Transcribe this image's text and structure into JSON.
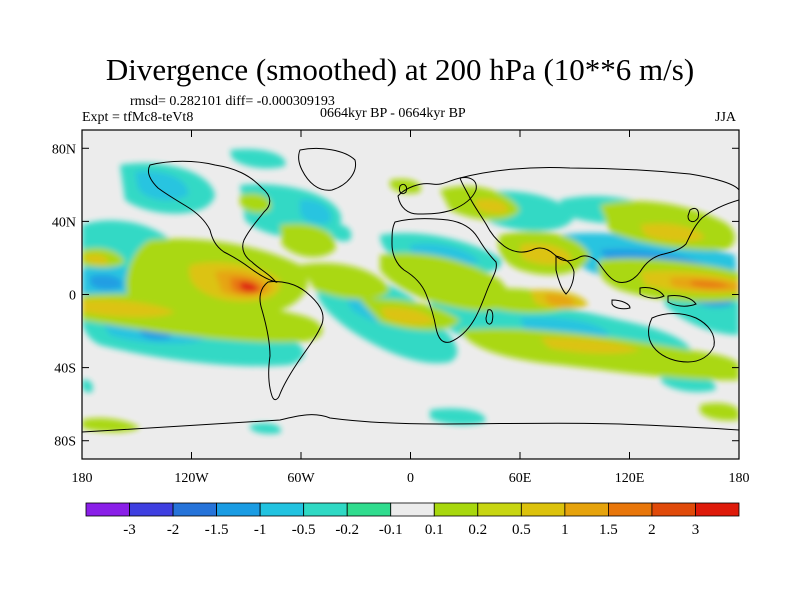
{
  "title": "Divergence (smoothed) at 200 hPa (10**6 m/s)",
  "stats": "rmsd= 0.282101 diff= -0.000309193",
  "experiment": "Expt = tfMc8-teVt8",
  "period": "0664kyr BP - 0664kyr BP",
  "season": "JJA",
  "map": {
    "lat_ticks": [
      {
        "value": 80,
        "label": "80N"
      },
      {
        "value": 40,
        "label": "40N"
      },
      {
        "value": 0,
        "label": "0"
      },
      {
        "value": -40,
        "label": "40S"
      },
      {
        "value": -80,
        "label": "80S"
      }
    ],
    "lon_ticks": [
      {
        "value": -180,
        "label": "180"
      },
      {
        "value": -120,
        "label": "120W"
      },
      {
        "value": -60,
        "label": "60W"
      },
      {
        "value": 0,
        "label": "0"
      },
      {
        "value": 60,
        "label": "60E"
      },
      {
        "value": 120,
        "label": "120E"
      },
      {
        "value": 180,
        "label": "180"
      }
    ],
    "background_color": "#ececec"
  },
  "colorbar": {
    "colors": [
      "#8a1fe8",
      "#3f3fe0",
      "#2673d9",
      "#1a9ce3",
      "#22c3e0",
      "#2fd9c4",
      "#30dc8e",
      "#ececec",
      "#a8d80e",
      "#c8d612",
      "#dcc20c",
      "#e6a30c",
      "#e8760a",
      "#e04a0a",
      "#de1a0a"
    ],
    "labels": [
      "-3",
      "-2",
      "-1.5",
      "-1",
      "-0.5",
      "-0.2",
      "-0.1",
      "0.1",
      "0.2",
      "0.5",
      "1",
      "1.5",
      "2",
      "3"
    ]
  }
}
